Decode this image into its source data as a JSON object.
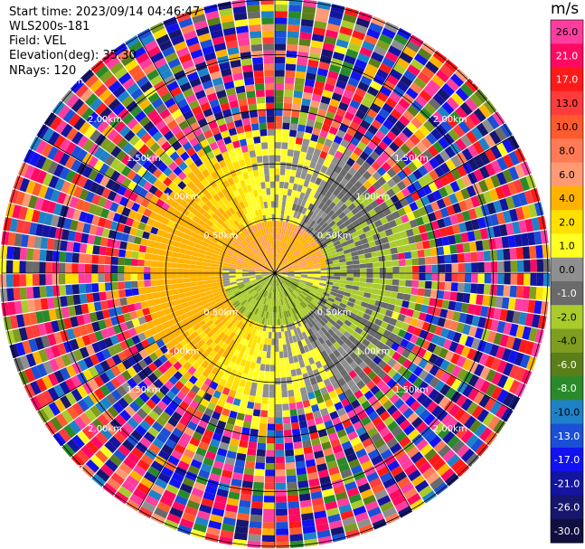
{
  "header": {
    "start_time": "Start time: 2023/09/14 04:46:47",
    "instrument": "WLS200s-181",
    "field": "Field: VEL",
    "elevation": "Elevation(deg): 35.30",
    "nrays": "NRays: 120"
  },
  "colorbar": {
    "unit": "m/s",
    "ticks": [
      "26.0",
      "21.0",
      "17.0",
      "13.0",
      "10.0",
      "8.0",
      "6.0",
      "4.0",
      "2.0",
      "1.0",
      "0.0",
      "-1.0",
      "-2.0",
      "-4.0",
      "-6.0",
      "-8.0",
      "-10.0",
      "-13.0",
      "-17.0",
      "-21.0",
      "-26.0",
      "-30.0"
    ],
    "colors": [
      "#ff3d9f",
      "#ff0a62",
      "#ff1a1a",
      "#ff3b3b",
      "#ff5a2e",
      "#ff7a55",
      "#ff9a75",
      "#ffb300",
      "#ffe000",
      "#ffff24",
      "#8f8f8f",
      "#6a6a6a",
      "#a9cc2c",
      "#7f9e1f",
      "#5a7e1a",
      "#2a8a2a",
      "#1e82c8",
      "#1b4fd6",
      "#1212f0",
      "#1414a0",
      "#16166e",
      "#101040"
    ]
  },
  "chart_data": {
    "type": "ppi",
    "field": "VEL",
    "units": "m/s",
    "nrays": 120,
    "elevation_deg": 35.3,
    "range_rings_km": [
      0.5,
      1.0,
      1.5,
      2.0,
      2.5
    ],
    "ring_labels": [
      "0.50km",
      "1.00km",
      "1.50km",
      "2.00km",
      "2.50km"
    ],
    "spokes_deg": [
      0,
      30,
      60,
      90,
      120,
      150,
      180,
      210,
      240,
      270,
      300,
      330
    ],
    "vmin": -30.0,
    "vmax": 26.0,
    "features": [
      {
        "description_region": "near (< 0.3 km), north",
        "velocity_ms": 3.0
      },
      {
        "description_region": "near, south",
        "velocity_ms": -3.0
      },
      {
        "description_region": "0.4-1.2 km west/north sector",
        "velocity_ms": 2.0
      },
      {
        "description_region": "0.4-1.2 km east sector",
        "velocity_ms": -2.0
      },
      {
        "description_region": "> 1.5 km",
        "velocity_ms": "noise"
      }
    ]
  }
}
